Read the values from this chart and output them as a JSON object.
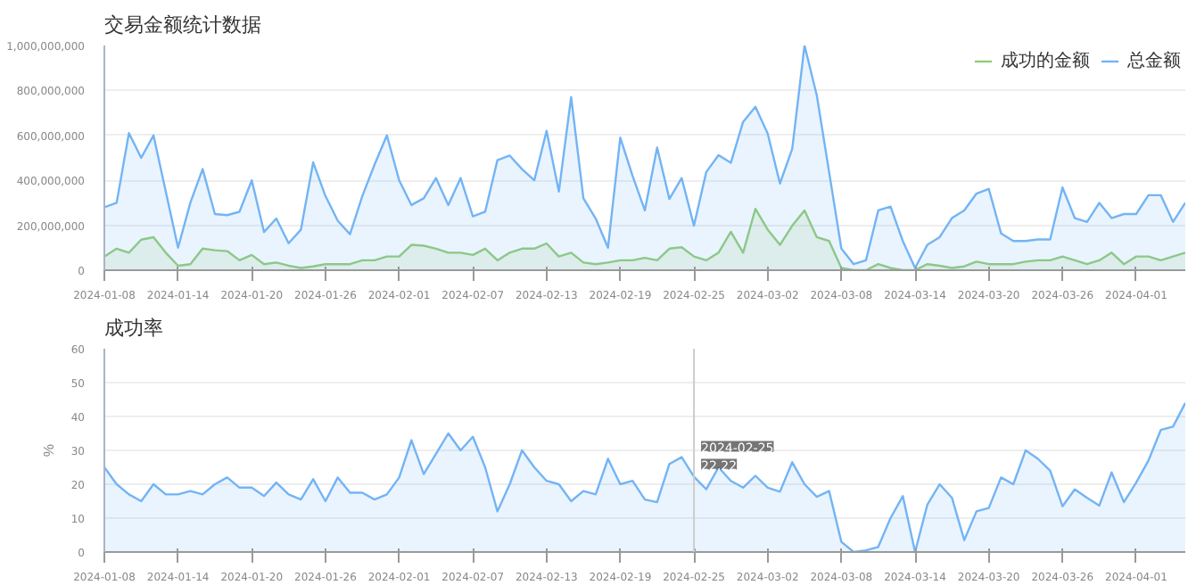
{
  "chart_data": [
    {
      "type": "area",
      "title": "交易金额统计数据",
      "legend": "top right",
      "grid": "y",
      "line_style": "solid",
      "marker": "none",
      "x": [
        "2024-01-08",
        "2024-01-09",
        "2024-01-10",
        "2024-01-11",
        "2024-01-12",
        "2024-01-13",
        "2024-01-14",
        "2024-01-15",
        "2024-01-16",
        "2024-01-17",
        "2024-01-18",
        "2024-01-19",
        "2024-01-20",
        "2024-01-21",
        "2024-01-22",
        "2024-01-23",
        "2024-01-24",
        "2024-01-25",
        "2024-01-26",
        "2024-01-27",
        "2024-01-28",
        "2024-01-29",
        "2024-01-30",
        "2024-01-31",
        "2024-02-01",
        "2024-02-02",
        "2024-02-03",
        "2024-02-04",
        "2024-02-05",
        "2024-02-06",
        "2024-02-07",
        "2024-02-08",
        "2024-02-09",
        "2024-02-10",
        "2024-02-11",
        "2024-02-12",
        "2024-02-13",
        "2024-02-14",
        "2024-02-15",
        "2024-02-16",
        "2024-02-17",
        "2024-02-18",
        "2024-02-19",
        "2024-02-20",
        "2024-02-21",
        "2024-02-22",
        "2024-02-23",
        "2024-02-24",
        "2024-02-25",
        "2024-02-26",
        "2024-02-27",
        "2024-02-28",
        "2024-02-29",
        "2024-03-01",
        "2024-03-02",
        "2024-03-03",
        "2024-03-04",
        "2024-03-05",
        "2024-03-06",
        "2024-03-07",
        "2024-03-08",
        "2024-03-09",
        "2024-03-10",
        "2024-03-11",
        "2024-03-12",
        "2024-03-13",
        "2024-03-14",
        "2024-03-15",
        "2024-03-16",
        "2024-03-17",
        "2024-03-18",
        "2024-03-19",
        "2024-03-20",
        "2024-03-21",
        "2024-03-22",
        "2024-03-23",
        "2024-03-24",
        "2024-03-25",
        "2024-03-26",
        "2024-03-27",
        "2024-03-28",
        "2024-03-29",
        "2024-03-30",
        "2024-03-31",
        "2024-04-01",
        "2024-04-02",
        "2024-04-03",
        "2024-04-04",
        "2024-04-05"
      ],
      "xlim": [
        "2024-01-08",
        "2024-04-05"
      ],
      "xticks": [
        "2024-01-08",
        "2024-01-14",
        "2024-01-20",
        "2024-01-26",
        "2024-02-01",
        "2024-02-07",
        "2024-02-13",
        "2024-02-19",
        "2024-02-25",
        "2024-03-02",
        "2024-03-08",
        "2024-03-14",
        "2024-03-20",
        "2024-03-26",
        "2024-04-01"
      ],
      "ylim": [
        0,
        1000000000
      ],
      "yticks": [
        0,
        {
          "value": 200000000,
          "label": "200,000,000"
        },
        {
          "value": 400000000,
          "label": "400,000,000"
        },
        {
          "value": 600000000,
          "label": "600,000,000"
        },
        {
          "value": 800000000,
          "label": "800,000,000"
        },
        {
          "value": 1000000000,
          "label": "1,000,000,000"
        }
      ],
      "series": [
        {
          "name": "成功的金额",
          "color": "#91cc75",
          "values": [
            61000000,
            96000000,
            78000000,
            136000000,
            147000000,
            78000000,
            20000000,
            27000000,
            96000000,
            89000000,
            85000000,
            44000000,
            68000000,
            27000000,
            34000000,
            20000000,
            10000000,
            17000000,
            27000000,
            27000000,
            27000000,
            44000000,
            44000000,
            61000000,
            61000000,
            113000000,
            109000000,
            96000000,
            78000000,
            78000000,
            68000000,
            96000000,
            44000000,
            78000000,
            96000000,
            96000000,
            119000000,
            61000000,
            78000000,
            34000000,
            27000000,
            34000000,
            44000000,
            44000000,
            55000000,
            44000000,
            96000000,
            102000000,
            61000000,
            44000000,
            78000000,
            171000000,
            78000000,
            273000000,
            181000000,
            113000000,
            198000000,
            266000000,
            147000000,
            130000000,
            10000000,
            0,
            0,
            27000000,
            10000000,
            0,
            0,
            27000000,
            20000000,
            10000000,
            17000000,
            38000000,
            27000000,
            27000000,
            27000000,
            38000000,
            44000000,
            44000000,
            61000000,
            44000000,
            27000000,
            44000000,
            78000000,
            27000000,
            61000000,
            61000000,
            44000000,
            61000000,
            78000000
          ]
        },
        {
          "name": "总金额",
          "color": "#73b4f5",
          "values": [
            280000000,
            300000000,
            610000000,
            500000000,
            600000000,
            350000000,
            100000000,
            300000000,
            450000000,
            250000000,
            245000000,
            260000000,
            400000000,
            170000000,
            230000000,
            120000000,
            180000000,
            480000000,
            330000000,
            220000000,
            160000000,
            330000000,
            470000000,
            600000000,
            400000000,
            290000000,
            320000000,
            410000000,
            290000000,
            410000000,
            240000000,
            260000000,
            490000000,
            510000000,
            450000000,
            400000000,
            620000000,
            350000000,
            770000000,
            320000000,
            230000000,
            100000000,
            590000000,
            420000000,
            266000000,
            546000000,
            317000000,
            410000000,
            198000000,
            437000000,
            512000000,
            478000000,
            660000000,
            727000000,
            608000000,
            386000000,
            540000000,
            1000000000,
            778000000,
            437000000,
            96000000,
            27000000,
            44000000,
            266000000,
            283000000,
            130000000,
            10000000,
            113000000,
            147000000,
            232000000,
            266000000,
            341000000,
            362000000,
            164000000,
            130000000,
            130000000,
            137000000,
            137000000,
            368000000,
            232000000,
            215000000,
            300000000,
            232000000,
            250000000,
            250000000,
            334000000,
            334000000,
            215000000,
            300000000
          ]
        }
      ]
    },
    {
      "type": "area",
      "title": "成功率",
      "ylabel": "%",
      "grid": "y",
      "line_style": "solid",
      "marker": "none",
      "legend": false,
      "x": [
        "2024-01-08",
        "2024-01-09",
        "2024-01-10",
        "2024-01-11",
        "2024-01-12",
        "2024-01-13",
        "2024-01-14",
        "2024-01-15",
        "2024-01-16",
        "2024-01-17",
        "2024-01-18",
        "2024-01-19",
        "2024-01-20",
        "2024-01-21",
        "2024-01-22",
        "2024-01-23",
        "2024-01-24",
        "2024-01-25",
        "2024-01-26",
        "2024-01-27",
        "2024-01-28",
        "2024-01-29",
        "2024-01-30",
        "2024-01-31",
        "2024-02-01",
        "2024-02-02",
        "2024-02-03",
        "2024-02-04",
        "2024-02-05",
        "2024-02-06",
        "2024-02-07",
        "2024-02-08",
        "2024-02-09",
        "2024-02-10",
        "2024-02-11",
        "2024-02-12",
        "2024-02-13",
        "2024-02-14",
        "2024-02-15",
        "2024-02-16",
        "2024-02-17",
        "2024-02-18",
        "2024-02-19",
        "2024-02-20",
        "2024-02-21",
        "2024-02-22",
        "2024-02-23",
        "2024-02-24",
        "2024-02-25",
        "2024-02-26",
        "2024-02-27",
        "2024-02-28",
        "2024-02-29",
        "2024-03-01",
        "2024-03-02",
        "2024-03-03",
        "2024-03-04",
        "2024-03-05",
        "2024-03-06",
        "2024-03-07",
        "2024-03-08",
        "2024-03-09",
        "2024-03-10",
        "2024-03-11",
        "2024-03-12",
        "2024-03-13",
        "2024-03-14",
        "2024-03-15",
        "2024-03-16",
        "2024-03-17",
        "2024-03-18",
        "2024-03-19",
        "2024-03-20",
        "2024-03-21",
        "2024-03-22",
        "2024-03-23",
        "2024-03-24",
        "2024-03-25",
        "2024-03-26",
        "2024-03-27",
        "2024-03-28",
        "2024-03-29",
        "2024-03-30",
        "2024-03-31",
        "2024-04-01",
        "2024-04-02",
        "2024-04-03",
        "2024-04-04",
        "2024-04-05"
      ],
      "xlim": [
        "2024-01-08",
        "2024-04-05"
      ],
      "xticks": [
        "2024-01-08",
        "2024-01-14",
        "2024-01-20",
        "2024-01-26",
        "2024-02-01",
        "2024-02-07",
        "2024-02-13",
        "2024-02-19",
        "2024-02-25",
        "2024-03-02",
        "2024-03-08",
        "2024-03-14",
        "2024-03-20",
        "2024-03-26",
        "2024-04-01"
      ],
      "ylim": [
        0,
        60
      ],
      "yticks": [
        0,
        10,
        20,
        30,
        40,
        50,
        60
      ],
      "series": [
        {
          "color": "#73b4f5",
          "values": [
            25,
            20,
            17,
            15,
            20,
            17,
            17,
            18,
            17,
            20,
            22,
            19,
            19,
            16.5,
            20.5,
            17,
            15.5,
            21.5,
            15,
            22,
            17.5,
            17.5,
            15.5,
            17,
            22,
            33,
            23,
            29,
            35,
            30,
            34,
            25,
            12,
            20,
            30,
            25,
            21,
            20,
            15,
            18,
            17,
            27.5,
            20,
            21,
            15.5,
            14.7,
            26,
            28,
            22.22,
            18.5,
            25,
            21,
            19,
            22.5,
            19,
            17.8,
            26.5,
            20,
            16.3,
            18,
            3,
            0,
            0.5,
            1.5,
            10,
            16.5,
            0,
            14,
            20,
            16,
            3.5,
            12,
            13,
            22,
            20,
            30,
            27.5,
            24,
            13.5,
            18.5,
            16,
            13.7,
            23.5,
            14.7,
            20.5,
            27,
            36,
            37,
            44
          ]
        }
      ],
      "ref_lines": [
        {
          "axis": "x",
          "value": "2024-02-25",
          "color": "#cccccc"
        }
      ],
      "annotations": [
        {
          "text": "2024-02-25",
          "x": "2024-02-25",
          "y": 22.22
        },
        {
          "text": "22.22",
          "x": "2024-02-25",
          "y": 22.22
        }
      ]
    }
  ]
}
